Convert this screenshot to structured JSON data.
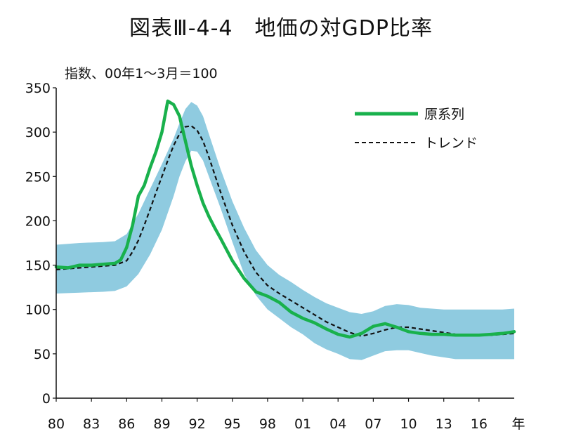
{
  "chart_data": {
    "type": "line",
    "title": "図表Ⅲ-4-4　地価の対GDP比率",
    "unit_label": "指数、00年1～3月＝100",
    "x_axis_suffix": "年",
    "xlim": [
      1980,
      2019
    ],
    "ylim": [
      0,
      350
    ],
    "y_ticks": [
      0,
      50,
      100,
      150,
      200,
      250,
      300,
      350
    ],
    "x_ticks": [
      {
        "value": 1980,
        "label": "80"
      },
      {
        "value": 1983,
        "label": "83"
      },
      {
        "value": 1986,
        "label": "86"
      },
      {
        "value": 1989,
        "label": "89"
      },
      {
        "value": 1992,
        "label": "92"
      },
      {
        "value": 1995,
        "label": "95"
      },
      {
        "value": 1998,
        "label": "98"
      },
      {
        "value": 2001,
        "label": "01"
      },
      {
        "value": 2004,
        "label": "04"
      },
      {
        "value": 2007,
        "label": "07"
      },
      {
        "value": 2010,
        "label": "10"
      },
      {
        "value": 2013,
        "label": "13"
      },
      {
        "value": 2016,
        "label": "16"
      }
    ],
    "grid": false,
    "legend_position": "top-right",
    "series": [
      {
        "name": "原系列",
        "color": "#19b14c",
        "style": "solid",
        "x": [
          1980,
          1981,
          1982,
          1983,
          1984,
          1985,
          1985.5,
          1986,
          1986.5,
          1987,
          1987.5,
          1988,
          1988.5,
          1989,
          1989.5,
          1990,
          1990.5,
          1991,
          1991.5,
          1992,
          1992.5,
          1993,
          1993.5,
          1994,
          1995,
          1996,
          1997,
          1998,
          1999,
          2000,
          2001,
          2002,
          2003,
          2004,
          2005,
          2006,
          2007,
          2008,
          2009,
          2010,
          2011,
          2012,
          2013,
          2014,
          2015,
          2016,
          2017,
          2018,
          2019
        ],
        "y": [
          148,
          147,
          150,
          150,
          151,
          152,
          156,
          170,
          195,
          228,
          240,
          260,
          278,
          300,
          335,
          331,
          318,
          290,
          262,
          240,
          220,
          205,
          192,
          180,
          155,
          135,
          120,
          115,
          108,
          97,
          90,
          85,
          78,
          72,
          69,
          73,
          81,
          84,
          80,
          75,
          73,
          72,
          72,
          71,
          71,
          71,
          72,
          73,
          75
        ]
      },
      {
        "name": "トレンド",
        "color": "#111111",
        "style": "dashed",
        "x": [
          1980,
          1981,
          1982,
          1983,
          1984,
          1985,
          1986,
          1986.5,
          1987,
          1987.5,
          1988,
          1988.5,
          1989,
          1989.5,
          1990,
          1990.5,
          1991,
          1991.5,
          1992,
          1992.5,
          1993,
          1993.5,
          1994,
          1995,
          1996,
          1997,
          1998,
          1999,
          2000,
          2001,
          2002,
          2003,
          2004,
          2005,
          2006,
          2007,
          2008,
          2009,
          2010,
          2011,
          2012,
          2013,
          2014,
          2015,
          2016,
          2017,
          2018,
          2019
        ],
        "y": [
          145,
          146,
          147,
          148,
          149,
          150,
          155,
          165,
          178,
          195,
          213,
          232,
          250,
          268,
          285,
          298,
          306,
          307,
          302,
          290,
          272,
          252,
          232,
          195,
          165,
          142,
          127,
          118,
          110,
          102,
          94,
          86,
          80,
          74,
          70,
          73,
          77,
          80,
          80,
          78,
          76,
          74,
          72,
          71,
          71,
          71,
          72,
          73
        ]
      }
    ],
    "confidence_band": {
      "color": "#8fcbe0",
      "x": [
        1980,
        1982,
        1984,
        1985,
        1986,
        1987,
        1988,
        1989,
        1990,
        1990.5,
        1991,
        1991.5,
        1992,
        1992.5,
        1993,
        1994,
        1995,
        1996,
        1997,
        1998,
        1999,
        2000,
        2001,
        2002,
        2003,
        2004,
        2005,
        2006,
        2007,
        2008,
        2009,
        2010,
        2011,
        2012,
        2013,
        2014,
        2015,
        2016,
        2017,
        2018,
        2019
      ],
      "upper": [
        173,
        175,
        176,
        177,
        185,
        208,
        236,
        264,
        293,
        310,
        326,
        334,
        330,
        318,
        298,
        258,
        222,
        192,
        167,
        150,
        139,
        131,
        122,
        114,
        107,
        102,
        97,
        95,
        98,
        104,
        106,
        105,
        102,
        101,
        100,
        100,
        100,
        100,
        100,
        100,
        101
      ],
      "lower": [
        118,
        119,
        120,
        121,
        126,
        140,
        162,
        190,
        228,
        250,
        267,
        279,
        278,
        268,
        250,
        214,
        176,
        140,
        116,
        100,
        90,
        80,
        72,
        62,
        55,
        50,
        44,
        43,
        48,
        53,
        54,
        54,
        51,
        48,
        46,
        44,
        44,
        44,
        44,
        44,
        44
      ]
    }
  }
}
